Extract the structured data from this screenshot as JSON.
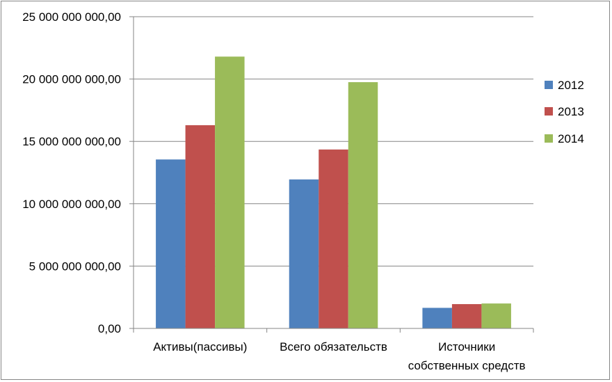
{
  "chart_data": {
    "type": "bar",
    "categories": [
      [
        "Активы(пассивы)"
      ],
      [
        "Всего обязательств"
      ],
      [
        "Источники",
        "собственных средств"
      ]
    ],
    "series": [
      {
        "name": "2012",
        "color": "#4F81BD",
        "values": [
          13550000000,
          11950000000,
          1650000000
        ]
      },
      {
        "name": "2013",
        "color": "#C0504D",
        "values": [
          16300000000,
          14350000000,
          1950000000
        ]
      },
      {
        "name": "2014",
        "color": "#9BBB59",
        "values": [
          21800000000,
          19750000000,
          2000000000
        ]
      }
    ],
    "y_ticks": [
      {
        "value": 0,
        "label": "0,00"
      },
      {
        "value": 5000000000,
        "label": "5 000 000 000,00"
      },
      {
        "value": 10000000000,
        "label": "10 000 000 000,00"
      },
      {
        "value": 15000000000,
        "label": "15 000 000 000,00"
      },
      {
        "value": 20000000000,
        "label": "20 000 000 000,00"
      },
      {
        "value": 25000000000,
        "label": "25 000 000 000,00"
      }
    ],
    "ylim": [
      0,
      25000000000
    ],
    "grid": true,
    "legend_position": "right",
    "title": "",
    "xlabel": "",
    "ylabel": ""
  }
}
